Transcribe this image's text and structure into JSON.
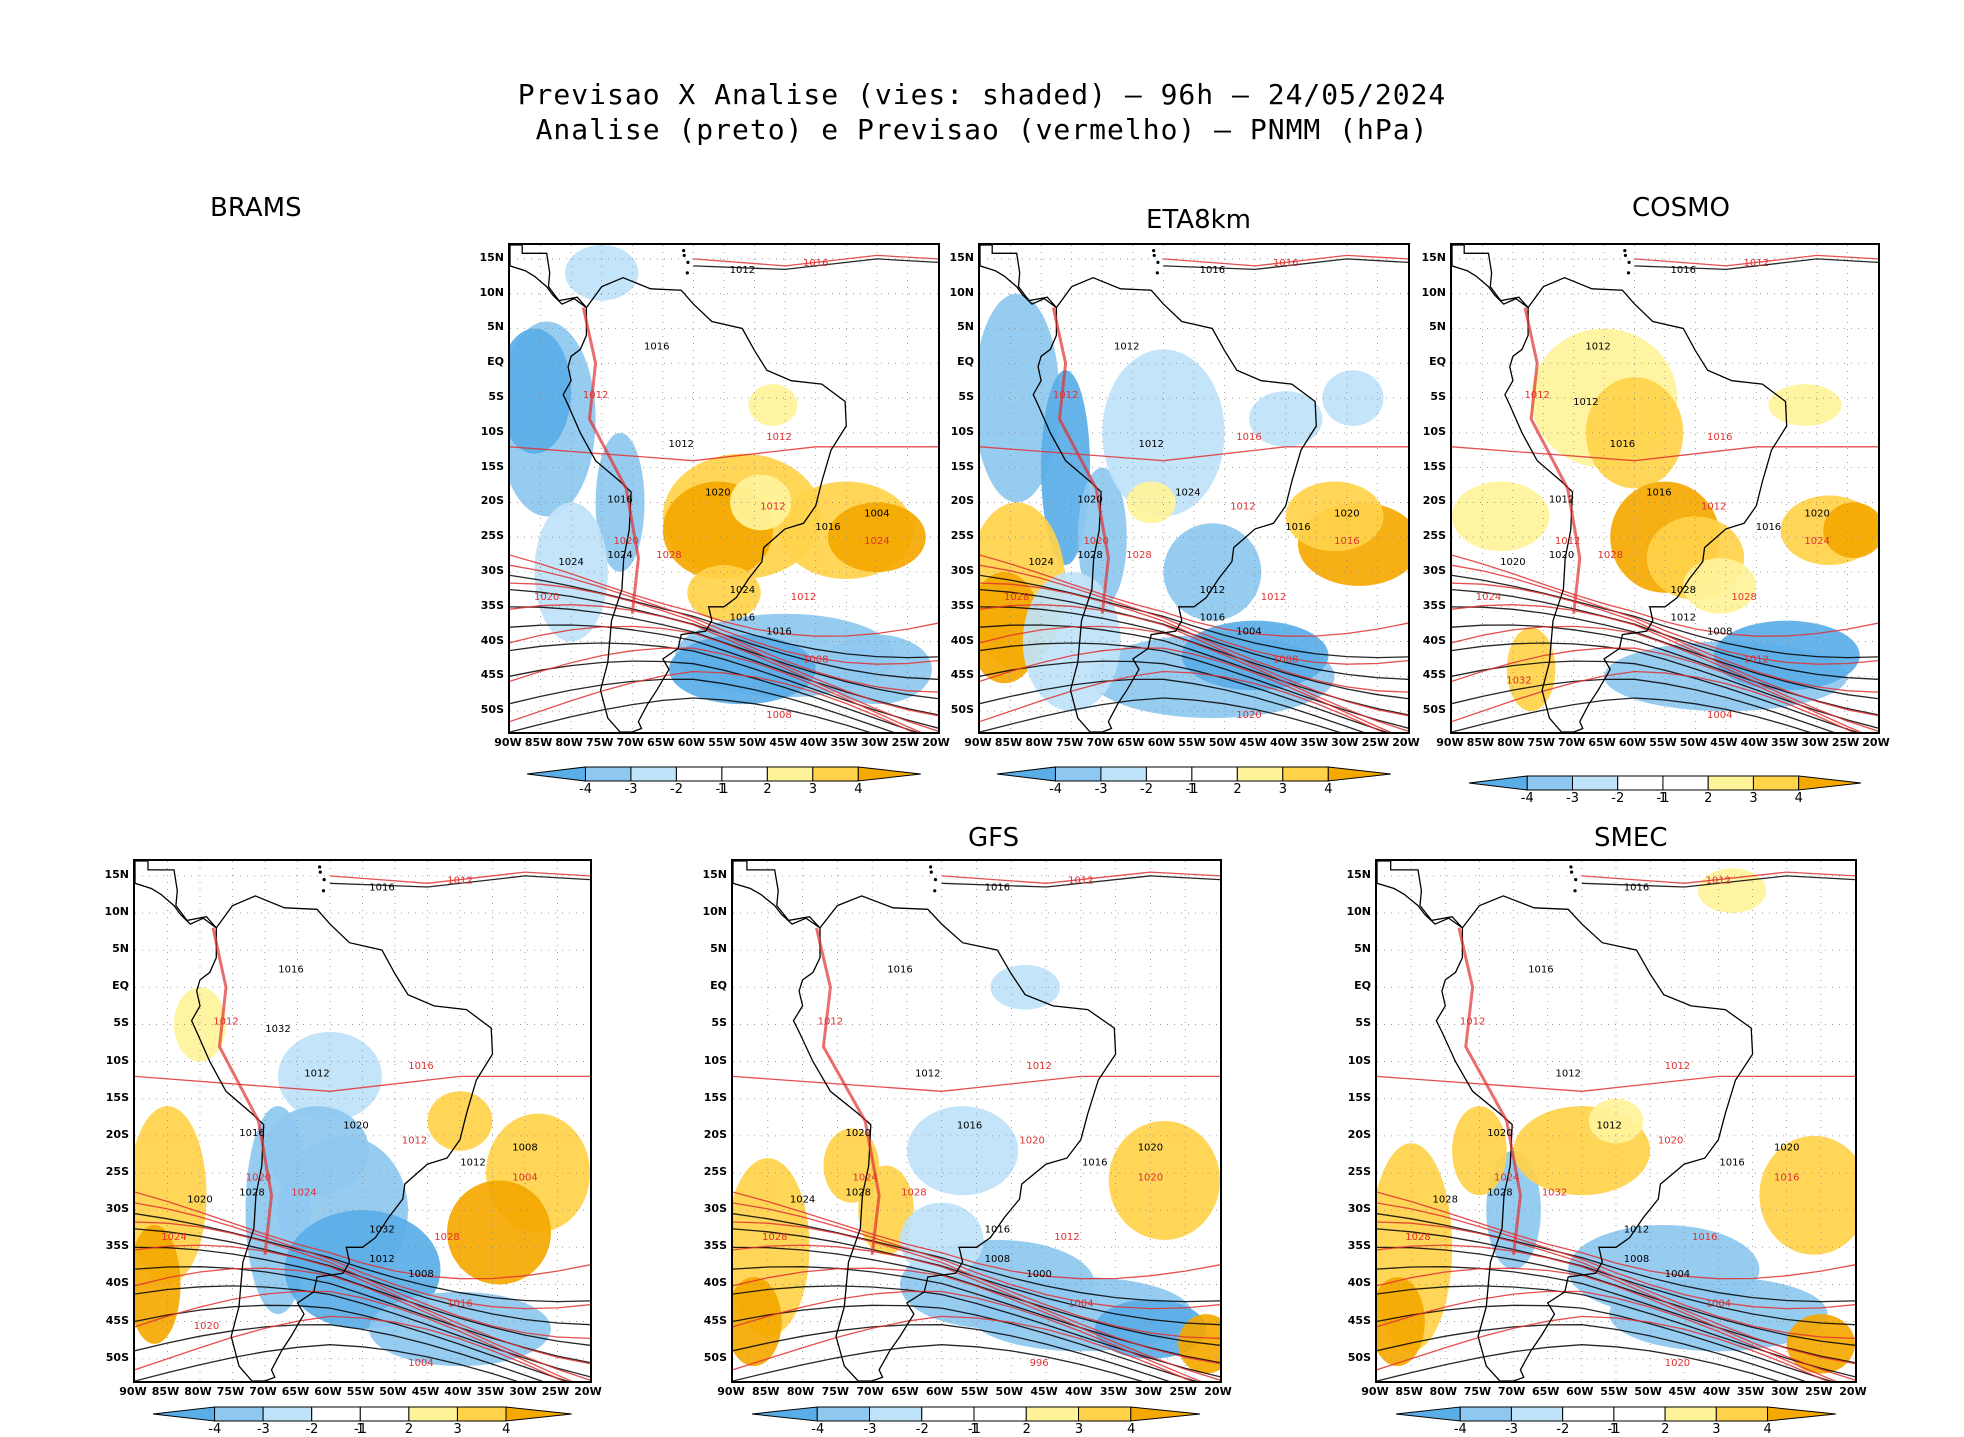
{
  "title_line1": "Previsao X Analise (vies: shaded) – 96h – 24/05/2024",
  "title_line2": "Analise (preto) e Previsao (vermelho) – PNMM (hPa)",
  "colors": {
    "neg4": "#5aaee8",
    "neg3": "#8ec8f0",
    "neg2": "#bfe3f8",
    "neg1": "#ffffff",
    "pos1": "#ffffff",
    "pos2": "#fff39a",
    "pos3": "#ffd24a",
    "pos4": "#f5a800",
    "analysis": "#000000",
    "forecast": "#e03030"
  },
  "panels": [
    {
      "id": "brams-top",
      "label": "BRAMS",
      "model": "brams"
    },
    {
      "id": "eta8km",
      "label": "ETA8km",
      "model": "eta"
    },
    {
      "id": "cosmo",
      "label": "COSMO",
      "model": "cosmo"
    },
    {
      "id": "brams-bottom",
      "label": "",
      "model": "brams2"
    },
    {
      "id": "gfs",
      "label": "GFS",
      "model": "gfs"
    },
    {
      "id": "smec",
      "label": "SMEC",
      "model": "smec"
    }
  ],
  "lat_labels": [
    "15N",
    "10N",
    "5N",
    "EQ",
    "5S",
    "10S",
    "15S",
    "20S",
    "25S",
    "30S",
    "35S",
    "40S",
    "45S",
    "50S"
  ],
  "lon_labels": [
    "90W",
    "85W",
    "80W",
    "75W",
    "70W",
    "65W",
    "60W",
    "55W",
    "50W",
    "45W",
    "40W",
    "35W",
    "30W",
    "25W",
    "20W"
  ],
  "colorbar_ticks": [
    "-4",
    "-3",
    "-2",
    "-1",
    "1",
    "2",
    "3",
    "4"
  ],
  "contour_labels": {
    "brams": [
      "1012",
      "1016",
      "1016",
      "1012",
      "1012",
      "1012",
      "1016",
      "1012",
      "1016",
      "1020",
      "1024",
      "1020",
      "1024",
      "1028",
      "1024",
      "1012",
      "1016",
      "1008",
      "1016",
      "1008",
      "1004",
      "1024",
      "1020"
    ],
    "eta": [
      "1016",
      "1016",
      "1012",
      "1012",
      "1012",
      "1016",
      "1016",
      "1012",
      "1020",
      "1020",
      "1024",
      "1028",
      "1028",
      "1028",
      "1012",
      "1012",
      "1016",
      "1008",
      "1004",
      "1020",
      "1020",
      "1016",
      "1024"
    ],
    "cosmo": [
      "1016",
      "1012",
      "1012",
      "1012",
      "1016",
      "1016",
      "1016",
      "1012",
      "1012",
      "1012",
      "1020",
      "1024",
      "1020",
      "1028",
      "1028",
      "1028",
      "1012",
      "1012",
      "1008",
      "1004",
      "1020",
      "1024",
      "1016",
      "1032",
      "1012"
    ],
    "brams2": [
      "1016",
      "1012",
      "1016",
      "1012",
      "1012",
      "1016",
      "1012",
      "1012",
      "1016",
      "1020",
      "1020",
      "1024",
      "1028",
      "1024",
      "1032",
      "1028",
      "1012",
      "1016",
      "1008",
      "1004",
      "1008",
      "1004",
      "1020",
      "1020",
      "1032"
    ],
    "gfs": [
      "1016",
      "1012",
      "1016",
      "1012",
      "1012",
      "1012",
      "1016",
      "1020",
      "1020",
      "1024",
      "1024",
      "1028",
      "1028",
      "1028",
      "1016",
      "1012",
      "1008",
      "1004",
      "1000",
      "996",
      "1020",
      "1020",
      "1016"
    ],
    "smec": [
      "1016",
      "1012",
      "1016",
      "1012",
      "1012",
      "1012",
      "1016",
      "1020",
      "1020",
      "1024",
      "1028",
      "1028",
      "1028",
      "1032",
      "1012",
      "1016",
      "1008",
      "1004",
      "1004",
      "1020",
      "1020",
      "1016",
      "1012"
    ]
  }
}
